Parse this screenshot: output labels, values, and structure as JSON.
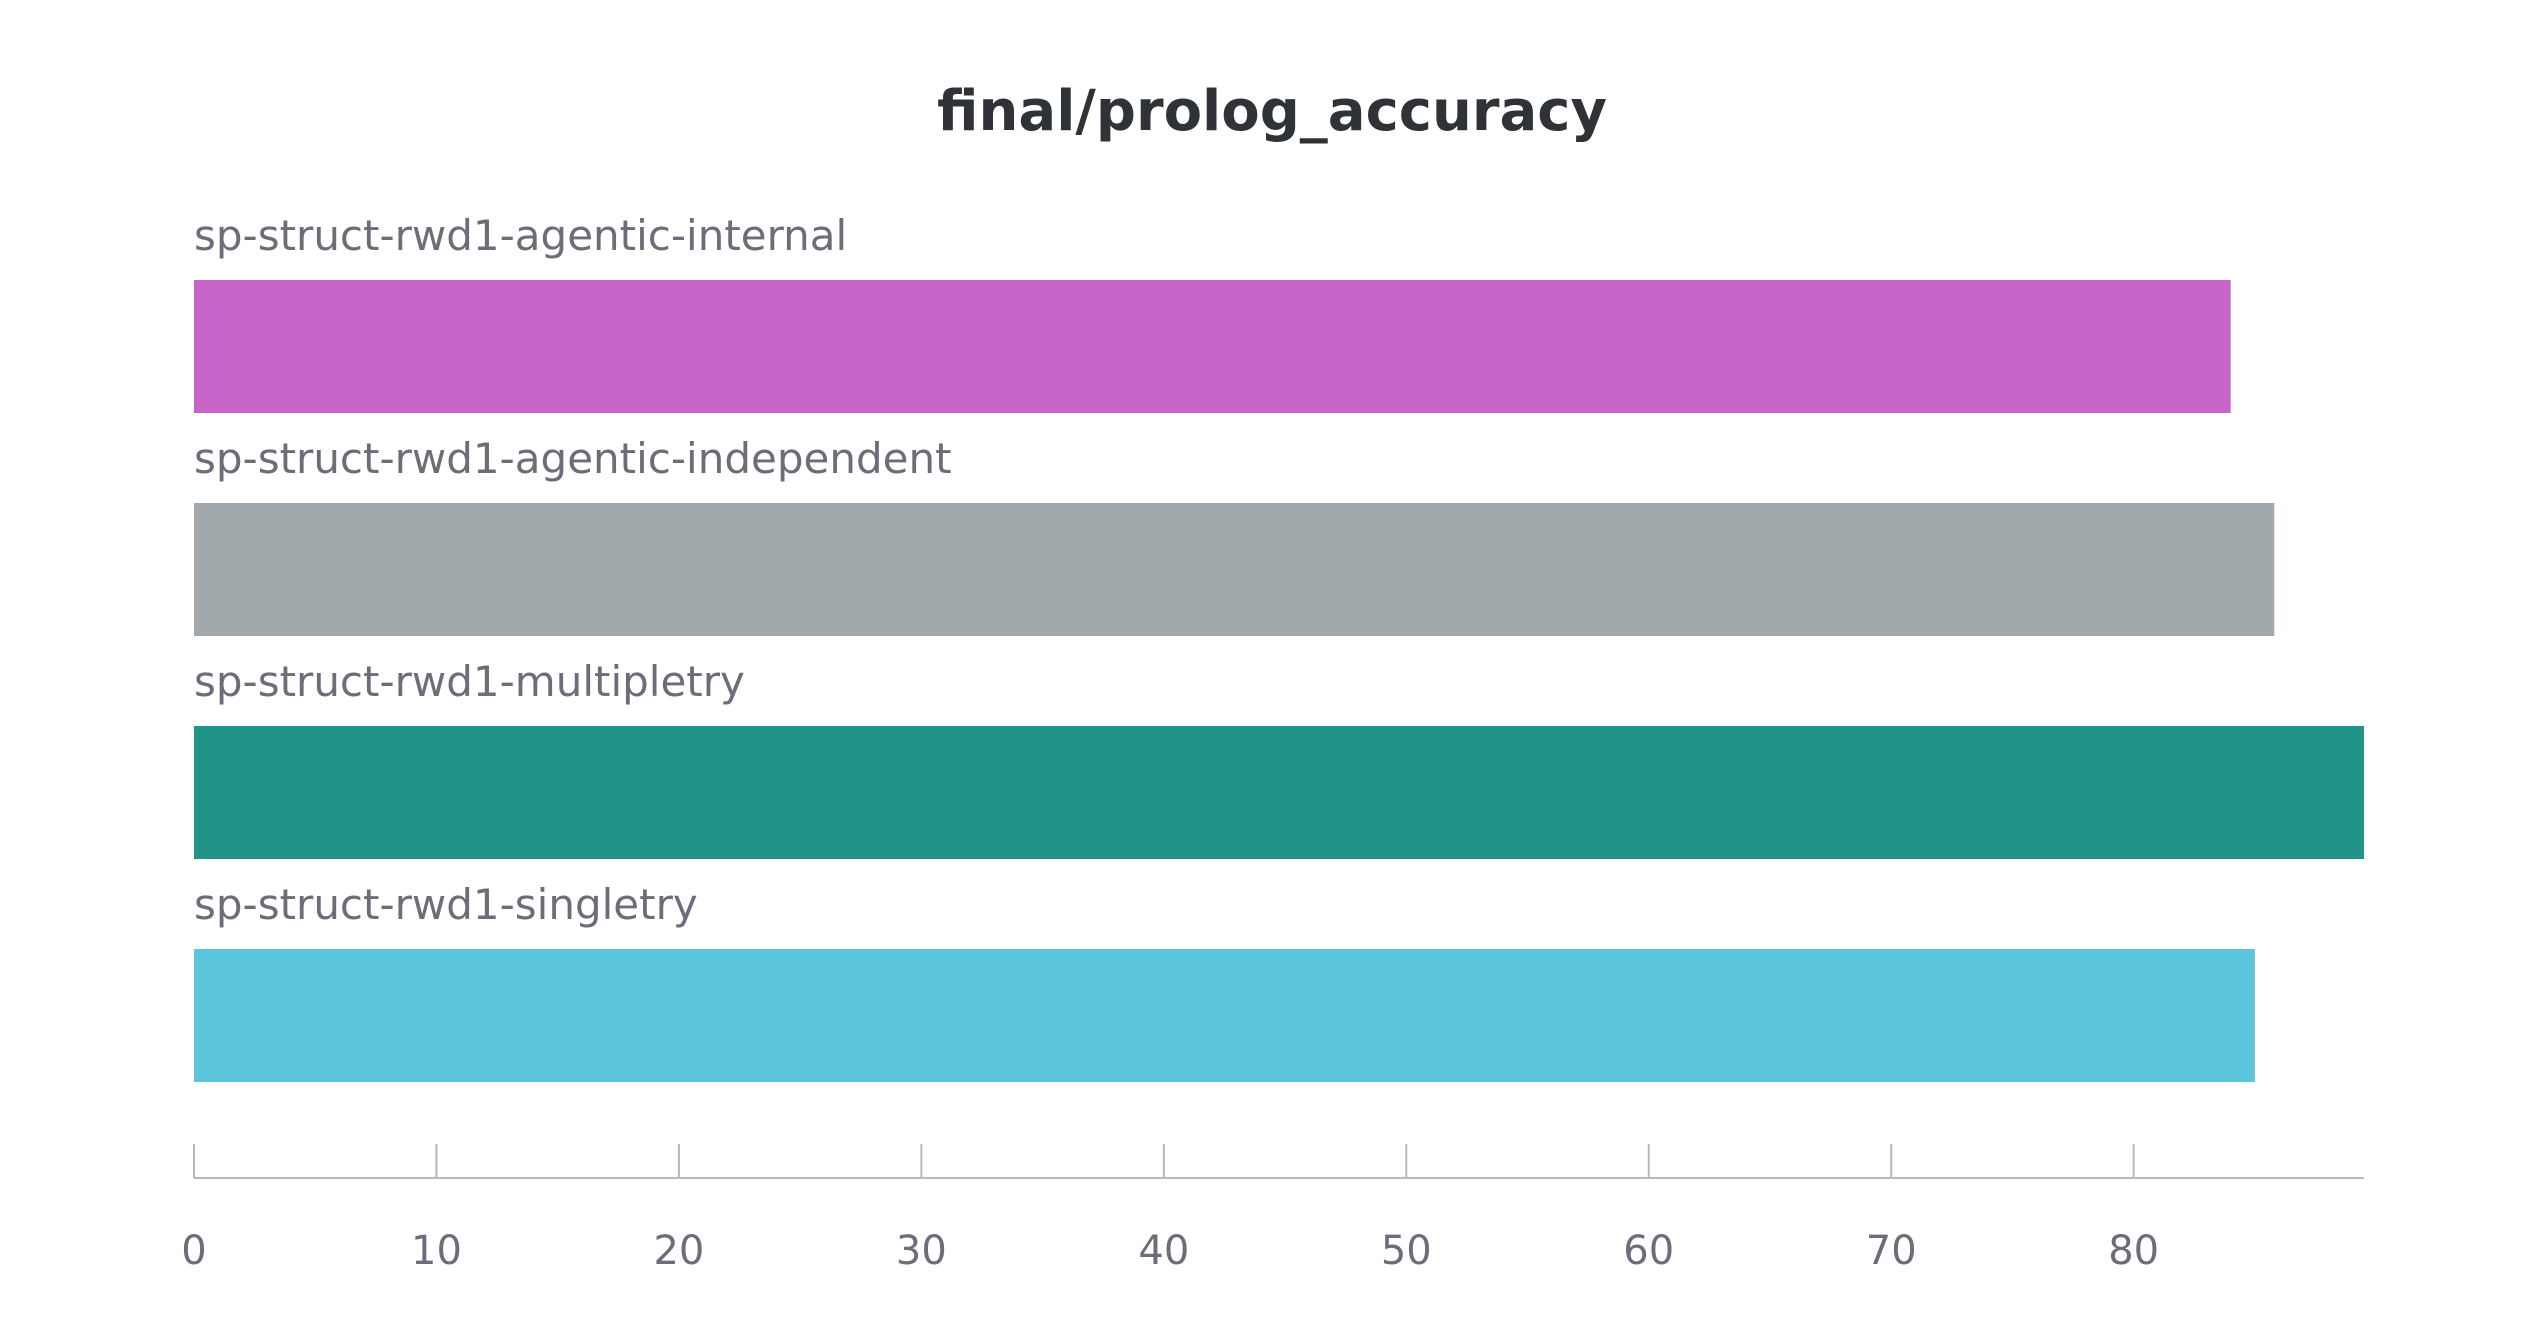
{
  "chart_data": {
    "type": "bar",
    "orientation": "horizontal",
    "title": "final/prolog_accuracy",
    "xlabel": "",
    "ylabel": "",
    "xlim": [
      0,
      89.5
    ],
    "ticks": [
      0,
      10,
      20,
      30,
      40,
      50,
      60,
      70,
      80
    ],
    "grid": false,
    "categories": [
      "sp-struct-rwd1-agentic-internal",
      "sp-struct-rwd1-agentic-independent",
      "sp-struct-rwd1-multipletry",
      "sp-struct-rwd1-singletry"
    ],
    "values": [
      84.0,
      85.8,
      89.5,
      85.0
    ],
    "colors": [
      "#c565c7",
      "#a1a9ad",
      "#229487",
      "#5bc5db"
    ]
  }
}
